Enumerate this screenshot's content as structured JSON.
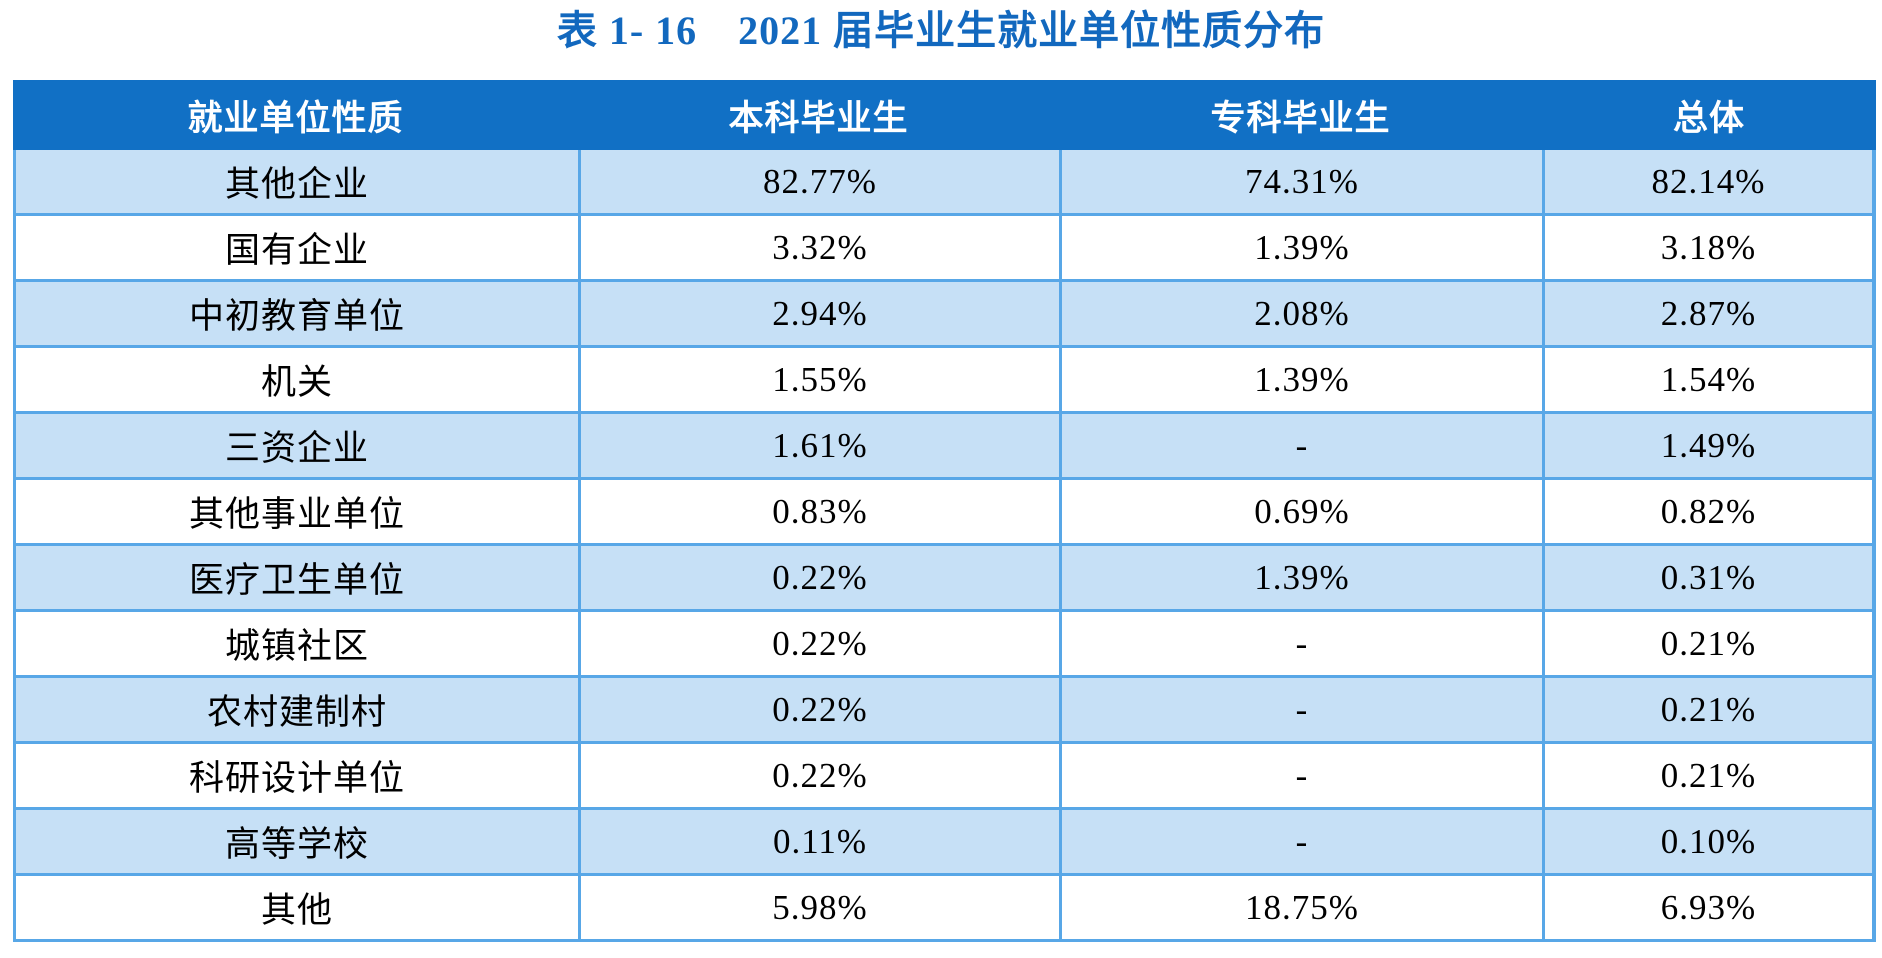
{
  "title": "表 1- 16　2021 届毕业生就业单位性质分布",
  "colors": {
    "title_text": "#1268be",
    "header_bg": "#1170c5",
    "header_text": "#ffffff",
    "band_row_bg": "#c6e0f6",
    "plain_row_bg": "#ffffff",
    "grid_line": "#58a7e7",
    "body_text": "#000000"
  },
  "table": {
    "columns": [
      "就业单位性质",
      "本科毕业生",
      "专科毕业生",
      "总体"
    ],
    "rows": [
      [
        "其他企业",
        "82.77%",
        "74.31%",
        "82.14%"
      ],
      [
        "国有企业",
        "3.32%",
        "1.39%",
        "3.18%"
      ],
      [
        "中初教育单位",
        "2.94%",
        "2.08%",
        "2.87%"
      ],
      [
        "机关",
        "1.55%",
        "1.39%",
        "1.54%"
      ],
      [
        "三资企业",
        "1.61%",
        "-",
        "1.49%"
      ],
      [
        "其他事业单位",
        "0.83%",
        "0.69%",
        "0.82%"
      ],
      [
        "医疗卫生单位",
        "0.22%",
        "1.39%",
        "0.31%"
      ],
      [
        "城镇社区",
        "0.22%",
        "-",
        "0.21%"
      ],
      [
        "农村建制村",
        "0.22%",
        "-",
        "0.21%"
      ],
      [
        "科研设计单位",
        "0.22%",
        "-",
        "0.21%"
      ],
      [
        "高等学校",
        "0.11%",
        "-",
        "0.10%"
      ],
      [
        "其他",
        "5.98%",
        "18.75%",
        "6.93%"
      ]
    ]
  }
}
